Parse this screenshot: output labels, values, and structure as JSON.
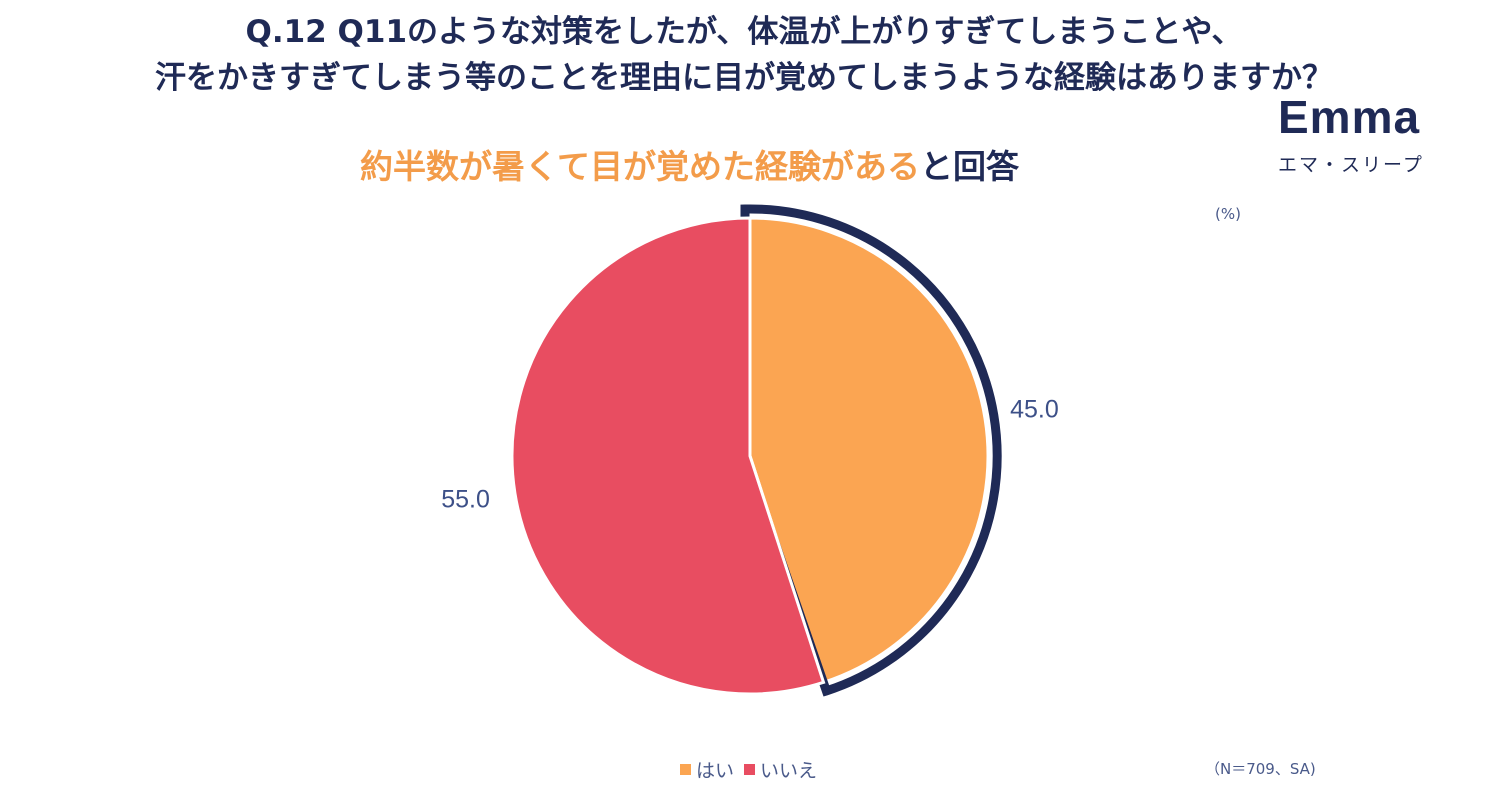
{
  "header": {
    "title_line1": "Q.12 Q11のような対策をしたが、体温が上がりすぎてしまうことや、",
    "title_line2": "汗をかきすぎてしまう等のことを理由に目が覚めてしまうような経験はありますか？"
  },
  "subtitle": {
    "highlight": "約半数が暑くて目が覚めた経験がある",
    "rest": "と回答"
  },
  "logo": {
    "text": "Emma",
    "subtext": "エマ・スリープ"
  },
  "unit_label": "(%)",
  "note": "（N＝709、SA)",
  "colors": {
    "title": "#1f2a56",
    "highlight": "#f39c4a",
    "yes": "#fba552",
    "no": "#e84d61",
    "outline": "#1f2a56"
  },
  "chart_data": {
    "type": "pie",
    "title": "",
    "categories": [
      "はい",
      "いいえ"
    ],
    "values": [
      45.0,
      55.0
    ],
    "labels": [
      "45.0",
      "55.0"
    ],
    "colors": [
      "#fba552",
      "#e84d61"
    ],
    "highlighted_slice": "はい",
    "legend_position": "bottom"
  }
}
